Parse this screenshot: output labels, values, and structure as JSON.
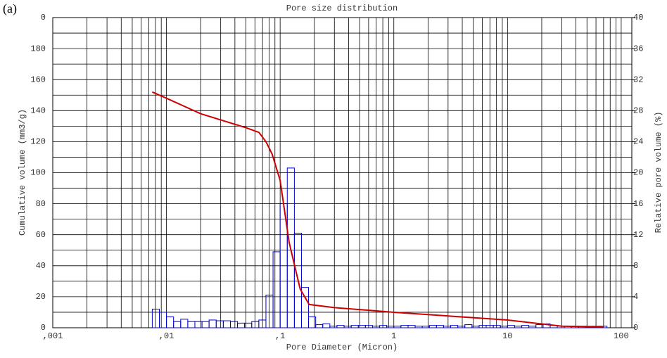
{
  "chart_data": {
    "type": "line",
    "title": "Pore size distribution",
    "panel_label": "(a)",
    "xlabel": "Pore Diameter (Micron)",
    "ylabel": "Cumulative volume (mm3/g)",
    "y2label": "Relative pore volume (%)",
    "xscale": "log",
    "xlim": [
      0.001,
      124
    ],
    "xticks": [
      {
        "value": 0.001,
        "label": ",001"
      },
      {
        "value": 0.01,
        "label": ",01"
      },
      {
        "value": 0.1,
        "label": ",1"
      },
      1,
      10,
      100
    ],
    "xminorticks": [
      0.002,
      0.003,
      0.004,
      0.005,
      0.006,
      0.007,
      0.008,
      0.009,
      0.02,
      0.03,
      0.04,
      0.05,
      0.06,
      0.07,
      0.08,
      0.09,
      0.2,
      0.3,
      0.4,
      0.5,
      0.6,
      0.7,
      0.8,
      0.9,
      2,
      3,
      4,
      5,
      6,
      7,
      8,
      9,
      20,
      30,
      40,
      50,
      60,
      70,
      80,
      90
    ],
    "ylim": [
      0,
      200
    ],
    "yticks": [
      0,
      20,
      40,
      60,
      80,
      100,
      120,
      140,
      160,
      180,
      {
        "value": 200,
        "label": "0"
      }
    ],
    "yminorticks": [
      10,
      30,
      50,
      70,
      90,
      110,
      130,
      150,
      170,
      190
    ],
    "y2lim": [
      0,
      40
    ],
    "y2ticks": [
      0,
      4,
      8,
      12,
      16,
      20,
      24,
      28,
      32,
      36,
      40
    ],
    "grid": true,
    "series": [
      {
        "color": "#cc0000",
        "x": [
          0.0075,
          0.01,
          0.02,
          0.05,
          0.065,
          0.075,
          0.085,
          0.1,
          0.12,
          0.15,
          0.18,
          0.3,
          1,
          10,
          30,
          70
        ],
        "values": [
          152,
          148,
          138,
          129,
          126,
          120,
          112,
          95,
          55,
          25,
          15,
          13,
          10,
          5,
          1,
          0.5
        ]
      }
    ],
    "histogram": {
      "color": "#0000cc",
      "axis": "y2",
      "bins": [
        0.0075,
        0.00866,
        0.01,
        0.01155,
        0.01334,
        0.0154,
        0.01778,
        0.02054,
        0.02371,
        0.02738,
        0.03162,
        0.03652,
        0.04217,
        0.0487,
        0.05623,
        0.06494,
        0.075,
        0.0866,
        0.1,
        0.1155,
        0.1334,
        0.154,
        0.1778,
        0.2054,
        0.2371,
        0.2738,
        0.3162,
        0.3652,
        0.4217,
        0.487,
        0.5623,
        0.6494,
        0.75,
        0.866,
        1,
        1.155,
        1.334,
        1.54,
        1.778,
        2.054,
        2.371,
        2.738,
        3.162,
        3.652,
        4.217,
        4.87,
        5.623,
        6.494,
        7.5,
        8.66,
        10,
        11.55,
        13.34,
        15.4,
        17.78,
        20.54,
        23.71,
        27.38,
        31.62,
        36.52,
        42.17,
        48.7,
        56.23,
        64.94,
        75
      ],
      "counts": [
        2.4,
        2.0,
        1.4,
        0.8,
        1.1,
        0.8,
        0.8,
        0.8,
        1.0,
        0.9,
        0.9,
        0.8,
        0.6,
        0.6,
        0.8,
        1.0,
        4.2,
        9.8,
        16,
        20.6,
        12.2,
        5.2,
        1.4,
        0.4,
        0.5,
        0.2,
        0.3,
        0.2,
        0.3,
        0.3,
        0.3,
        0.2,
        0.3,
        0.2,
        0.2,
        0.3,
        0.3,
        0.2,
        0.2,
        0.3,
        0.3,
        0.2,
        0.3,
        0.2,
        0.4,
        0.2,
        0.3,
        0.3,
        0.3,
        0.2,
        0.3,
        0.2,
        0.3,
        0.2,
        0.4,
        0.5,
        0.3,
        0.2,
        0.2,
        0.2,
        0.2,
        0.2,
        0.2,
        0.2
      ]
    }
  }
}
